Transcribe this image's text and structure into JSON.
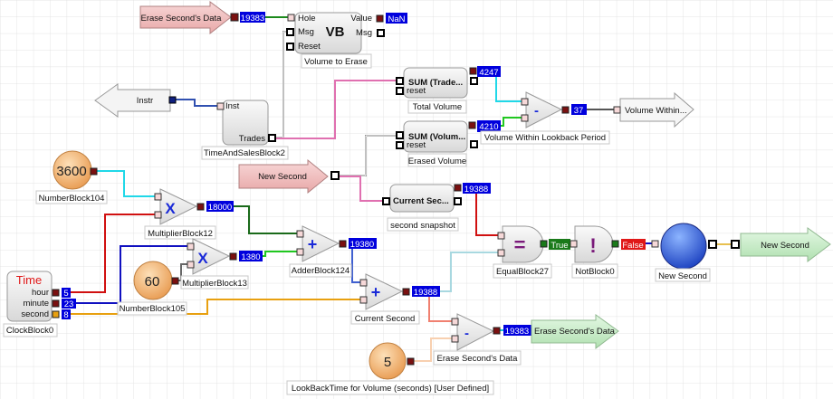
{
  "colors": {
    "value_box": "#0000dd",
    "true_box": "#1a7a1a",
    "false_box": "#e01818",
    "input_arrow": "#f2c4c4",
    "output_arrow": "#c8ecc8",
    "number_block": "#f2b070",
    "grid": "#e4e4e4"
  },
  "blocks": {
    "erase_in": {
      "text": "Erase Second's Data",
      "value": "19383"
    },
    "vb": {
      "symbol": "VB",
      "in1": "Hole",
      "in2": "Msg",
      "in3": "Reset",
      "out1": "Value",
      "out2": "Msg",
      "value": "NaN",
      "label": "Volume to Erase"
    },
    "instr": {
      "text": "Instr"
    },
    "tas": {
      "in": "Inst",
      "out": "Trades",
      "label": "TimeAndSalesBlock2"
    },
    "sum_trade": {
      "title": "SUM (Trade...",
      "reset": "reset",
      "value": "4247",
      "label": "Total Volume"
    },
    "sum_vol": {
      "title": "SUM (Volum...",
      "reset": "reset",
      "value": "4210",
      "label": "Erased Volume"
    },
    "vol_minus": {
      "symbol": "-",
      "value": "37",
      "label": "Volume Within Lookback Period"
    },
    "vol_out": {
      "text": "Volume Within..."
    },
    "new_sec_in": {
      "text": "New Second"
    },
    "snapshot": {
      "title": "Current Sec...",
      "value": "19388",
      "label": "second snapshot"
    },
    "num104": {
      "value": "3600",
      "label": "NumberBlock104"
    },
    "mult12": {
      "symbol": "X",
      "value": "18000",
      "label": "MultiplierBlock12"
    },
    "mult13": {
      "symbol": "X",
      "value": "1380",
      "label": "MultiplierBlock13"
    },
    "num105": {
      "value": "60",
      "label": "NumberBlock105"
    },
    "clock": {
      "title": "Time",
      "hour": "hour",
      "minute": "minute",
      "second": "second",
      "hour_val": "5",
      "minute_val": "23",
      "second_val": "8",
      "label": "ClockBlock0"
    },
    "adder124": {
      "symbol": "+",
      "value": "19380",
      "label": "AdderBlock124"
    },
    "cur_sec": {
      "symbol": "+",
      "value": "19388",
      "label": "Current Second"
    },
    "num5": {
      "value": "5",
      "label": "LookBackTime for Volume (seconds) [User Defined]"
    },
    "erase_minus": {
      "symbol": "-",
      "value": "19383",
      "label": "Erase Second's Data"
    },
    "erase_out": {
      "text": "Erase Second's Data"
    },
    "equal": {
      "symbol": "=",
      "value": "True",
      "label": "EqualBlock27"
    },
    "not": {
      "symbol": "!",
      "value": "False",
      "label": "NotBlock0"
    },
    "sphere": {
      "label": "New Second"
    },
    "new_sec_out": {
      "text": "New Second"
    }
  }
}
